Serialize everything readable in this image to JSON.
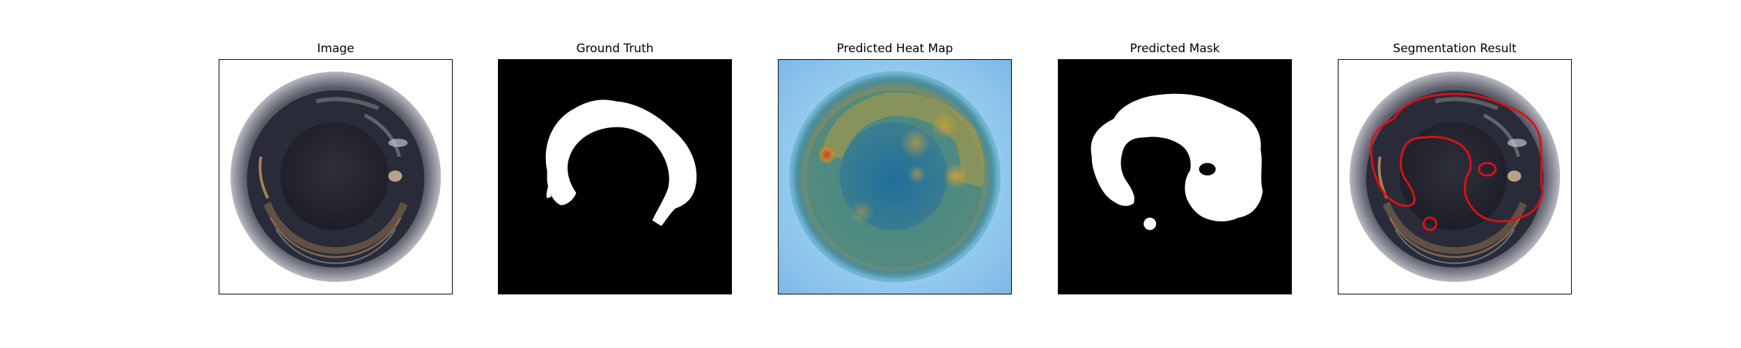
{
  "panels": [
    {
      "title": "Image"
    },
    {
      "title": "Ground Truth"
    },
    {
      "title": "Predicted Heat Map"
    },
    {
      "title": "Predicted Mask"
    },
    {
      "title": "Segmentation Result"
    }
  ],
  "colors": {
    "mask_fill": "#ffffff",
    "mask_background": "#000000",
    "contour": "#e01010",
    "heatmap_base": "#8fc7ec"
  }
}
